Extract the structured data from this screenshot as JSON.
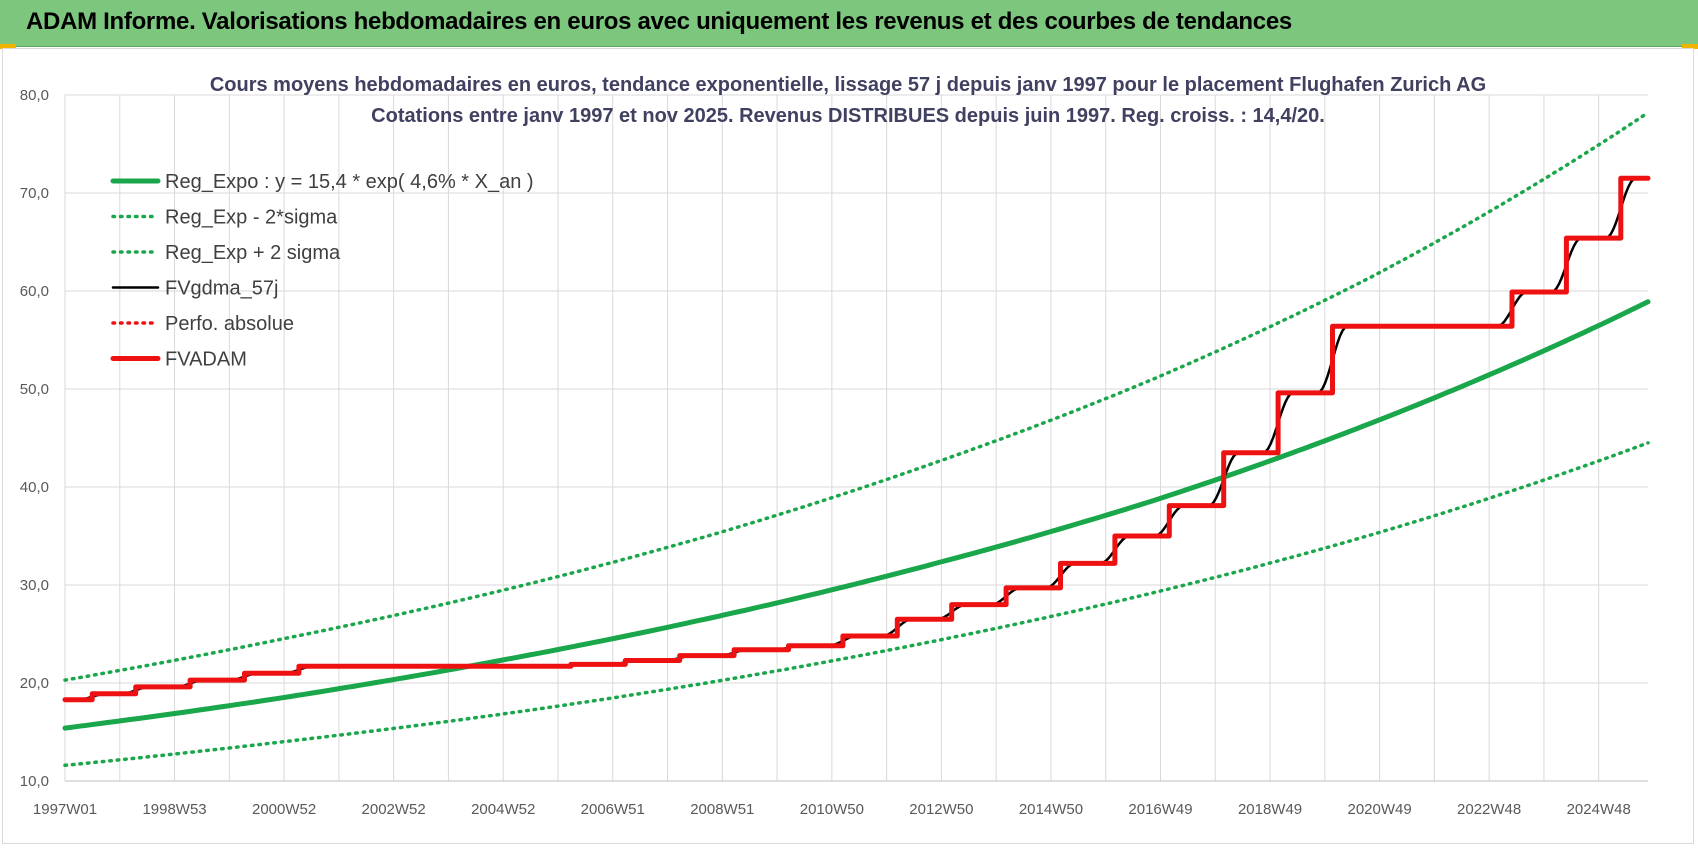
{
  "header": {
    "title": "ADAM Informe. Valorisations hebdomadaires en euros avec uniquement les revenus et des courbes de tendances"
  },
  "colors": {
    "banner": "#7dc67d",
    "trend": "#1aa64a",
    "fvgdma": "#000000",
    "fvadam": "#ee1111",
    "perfo": "#ee1111",
    "grid": "#d9d9d9"
  },
  "chart_data": {
    "type": "line",
    "title": [
      "Cours moyens hebdomadaires en euros, tendance exponentielle, lissage 57 j depuis janv 1997 pour le placement Flughafen Zurich AG",
      "Cotations entre janv 1997 et nov 2025. Revenus DISTRIBUES depuis juin 1997. Reg. croiss. : 14,4/20."
    ],
    "xlabel": "",
    "ylabel": "",
    "x_tick_labels": [
      "1997W01",
      "1998W53",
      "2000W52",
      "2002W52",
      "2004W52",
      "2006W51",
      "2008W51",
      "2010W50",
      "2012W50",
      "2014W50",
      "2016W49",
      "2018W49",
      "2020W49",
      "2022W48",
      "2024W48"
    ],
    "x_range_years": [
      1997.0,
      2026.1
    ],
    "ylim": [
      10,
      80
    ],
    "y_ticks": [
      "10,0",
      "20,0",
      "30,0",
      "40,0",
      "50,0",
      "60,0",
      "70,0",
      "80,0"
    ],
    "grid": true,
    "legend_position": "top-left",
    "series": [
      {
        "name": "Reg_Expo : y = 15,4 * exp( 4,6% *  X_an )",
        "style": "solid-thick",
        "color": "#1aa64a",
        "x": [
          1997,
          2001,
          2005,
          2009,
          2013,
          2017,
          2021,
          2026.1
        ],
        "y": [
          15.4,
          18.5,
          22.3,
          26.8,
          32.2,
          38.6,
          46.5,
          58.9
        ]
      },
      {
        "name": "Reg_Exp - 2*sigma",
        "style": "dotted",
        "color": "#1aa64a",
        "x": [
          1997,
          2001,
          2005,
          2009,
          2013,
          2017,
          2021,
          2026.1
        ],
        "y": [
          11.6,
          14.0,
          16.8,
          20.2,
          24.3,
          29.2,
          35.1,
          44.5
        ]
      },
      {
        "name": "Reg_Exp + 2 sigma",
        "style": "dotted",
        "color": "#1aa64a",
        "x": [
          1997,
          2001,
          2005,
          2009,
          2013,
          2017,
          2021,
          2026.1
        ],
        "y": [
          20.3,
          24.5,
          29.4,
          35.3,
          42.5,
          51.0,
          61.4,
          78.2
        ]
      },
      {
        "name": "FVgdma_57j",
        "style": "solid",
        "color": "#000000",
        "x": [
          1997.0,
          1997.5,
          1998.3,
          1999.3,
          2000.3,
          2001.3,
          2003.5,
          2006.3,
          2007.3,
          2008.3,
          2009.3,
          2010.3,
          2011.3,
          2012.3,
          2013.3,
          2014.3,
          2015.3,
          2016.3,
          2017.3,
          2018.3,
          2019.3,
          2020.3,
          2022.6,
          2023.6,
          2024.6,
          2025.6,
          2026.1
        ],
        "y": [
          18.3,
          18.9,
          19.6,
          20.3,
          21.0,
          21.7,
          21.7,
          21.9,
          22.3,
          22.8,
          23.4,
          23.8,
          24.8,
          26.5,
          28.0,
          29.7,
          32.2,
          35.0,
          38.1,
          43.5,
          49.6,
          56.4,
          56.4,
          59.9,
          65.4,
          71.5,
          71.5
        ]
      },
      {
        "name": "Perfo. absolue",
        "style": "dotted",
        "color": "#ee1111",
        "x": [],
        "y": []
      },
      {
        "name": "FVADAM",
        "style": "step-thick",
        "color": "#ee1111",
        "x": [
          1997.0,
          1997.5,
          1998.3,
          1999.3,
          2000.3,
          2001.3,
          2003.5,
          2006.3,
          2007.3,
          2008.3,
          2009.3,
          2010.3,
          2011.3,
          2012.3,
          2013.3,
          2014.3,
          2015.3,
          2016.3,
          2017.3,
          2018.3,
          2019.3,
          2020.3,
          2022.6,
          2023.6,
          2024.6,
          2025.6,
          2026.1
        ],
        "y": [
          18.3,
          18.9,
          19.6,
          20.3,
          21.0,
          21.7,
          21.7,
          21.9,
          22.3,
          22.8,
          23.4,
          23.8,
          24.8,
          26.5,
          28.0,
          29.7,
          32.2,
          35.0,
          38.1,
          43.5,
          49.6,
          56.4,
          56.4,
          59.9,
          65.4,
          71.5,
          71.5
        ]
      }
    ]
  }
}
